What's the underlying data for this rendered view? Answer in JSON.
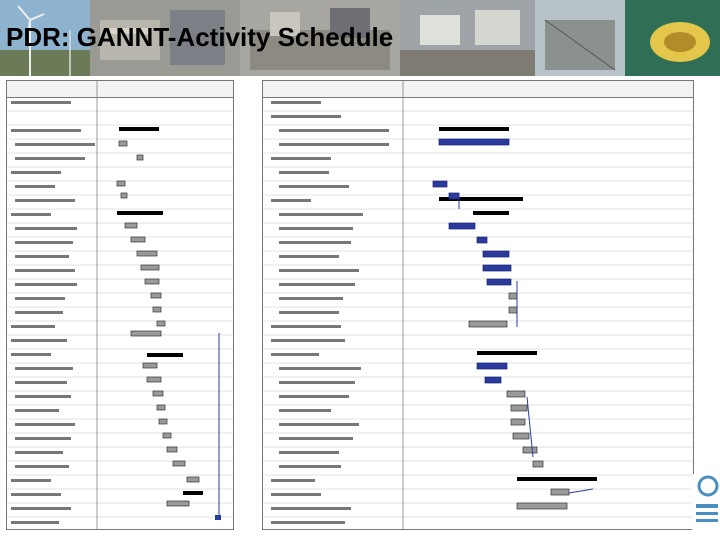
{
  "slide": {
    "title": "PDR:  GANNT-Activity Schedule"
  }
}
